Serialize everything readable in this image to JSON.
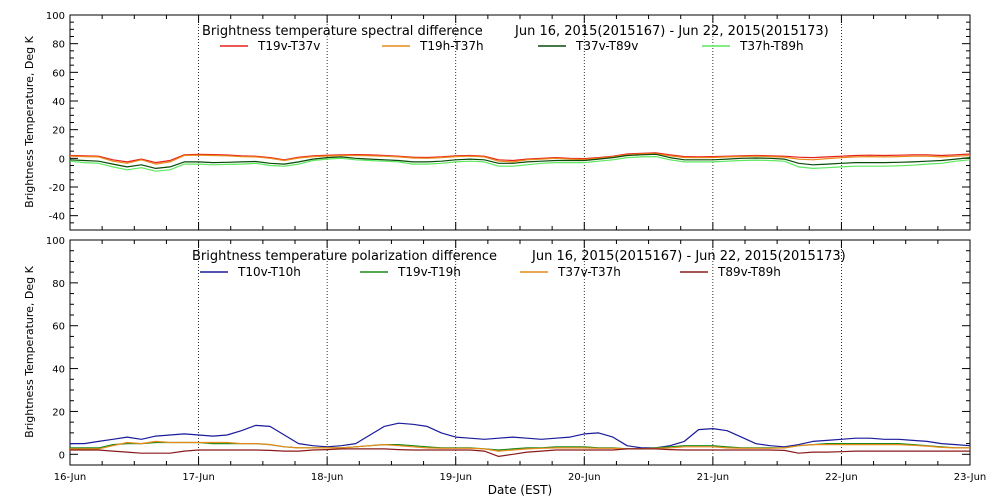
{
  "chart_data": [
    {
      "type": "line",
      "title": "Brightness temperature spectral difference",
      "date_range": "Jun 16, 2015(2015167) - Jun 22, 2015(2015173)",
      "ylabel": "Brightness Temperature, Deg K",
      "xlabel": "",
      "x_ticks": [],
      "y_ticks": [
        -40,
        -20,
        0,
        20,
        40,
        60,
        80,
        100
      ],
      "xlim": [
        0,
        7
      ],
      "ylim": [
        -50,
        100
      ],
      "grid": "vertical dotted lines at each day",
      "legend": "top, one row",
      "series": [
        {
          "name": "T19v-T37v",
          "color": "#e8201a",
          "values": [
            2.0,
            1.8,
            1.5,
            -1.0,
            -2.5,
            -0.5,
            -3.0,
            -1.5,
            2.5,
            2.8,
            2.6,
            2.3,
            1.8,
            1.5,
            0.5,
            -1.0,
            0.8,
            1.8,
            2.2,
            2.5,
            2.6,
            2.4,
            2.0,
            1.5,
            0.8,
            0.6,
            1.0,
            1.8,
            2.0,
            1.5,
            -1.0,
            -1.5,
            -0.5,
            0.0,
            0.5,
            0.0,
            -0.2,
            0.5,
            1.5,
            3.0,
            3.5,
            3.8,
            2.5,
            1.2,
            1.0,
            1.2,
            1.5,
            1.8,
            2.0,
            1.8,
            1.5,
            0.8,
            0.5,
            1.0,
            1.5,
            2.0,
            2.2,
            2.0,
            2.2,
            2.5,
            2.5,
            2.0,
            2.5,
            3.0
          ]
        },
        {
          "name": "T19h-T37h",
          "color": "#e88a1a",
          "values": [
            1.5,
            1.2,
            1.0,
            -2.0,
            -3.5,
            -1.0,
            -4.0,
            -2.5,
            2.0,
            2.2,
            2.0,
            1.8,
            1.2,
            1.0,
            0.0,
            -1.5,
            0.2,
            1.2,
            1.6,
            2.0,
            2.0,
            1.8,
            1.5,
            1.0,
            0.2,
            0.0,
            0.5,
            1.2,
            1.5,
            1.0,
            -2.0,
            -2.5,
            -1.0,
            -0.5,
            0.0,
            -0.5,
            -0.8,
            0.0,
            1.0,
            2.5,
            3.0,
            3.2,
            1.8,
            0.6,
            0.5,
            0.6,
            1.0,
            1.2,
            1.5,
            1.2,
            0.8,
            -0.5,
            -1.0,
            -0.2,
            0.5,
            1.0,
            1.2,
            1.0,
            1.2,
            1.5,
            1.5,
            1.0,
            1.5,
            2.0
          ]
        },
        {
          "name": "T37v-T89v",
          "color": "#0a4a0a",
          "values": [
            -1.0,
            -1.5,
            -2.0,
            -4.0,
            -6.0,
            -4.5,
            -7.0,
            -6.0,
            -2.5,
            -2.5,
            -3.0,
            -2.8,
            -2.5,
            -2.2,
            -3.5,
            -4.0,
            -2.5,
            -0.5,
            0.5,
            1.0,
            0.0,
            -0.5,
            -1.0,
            -1.5,
            -2.5,
            -2.5,
            -2.0,
            -1.0,
            -0.5,
            -1.0,
            -3.5,
            -3.5,
            -2.5,
            -2.0,
            -1.5,
            -1.5,
            -1.5,
            -0.5,
            0.5,
            2.0,
            2.5,
            2.8,
            0.5,
            -1.0,
            -1.0,
            -1.0,
            -0.5,
            0.0,
            0.2,
            0.0,
            -0.5,
            -3.5,
            -4.5,
            -4.0,
            -3.5,
            -3.0,
            -3.0,
            -3.0,
            -2.8,
            -2.5,
            -2.0,
            -1.5,
            -0.5,
            0.5
          ]
        },
        {
          "name": "T37h-T89h",
          "color": "#5ee85e",
          "values": [
            -2.0,
            -3.0,
            -3.5,
            -6.0,
            -8.0,
            -6.5,
            -9.0,
            -8.0,
            -4.0,
            -4.0,
            -4.5,
            -4.2,
            -4.0,
            -3.5,
            -5.0,
            -5.5,
            -4.0,
            -1.5,
            -0.5,
            0.0,
            -1.0,
            -1.5,
            -2.0,
            -2.5,
            -4.0,
            -4.0,
            -3.5,
            -2.5,
            -2.0,
            -2.5,
            -5.5,
            -5.5,
            -4.5,
            -3.5,
            -3.0,
            -3.0,
            -3.0,
            -2.0,
            -1.0,
            0.5,
            1.0,
            1.2,
            -1.0,
            -2.5,
            -2.5,
            -2.5,
            -2.0,
            -1.5,
            -1.2,
            -1.5,
            -2.0,
            -6.0,
            -7.0,
            -6.5,
            -6.0,
            -5.5,
            -5.5,
            -5.5,
            -5.2,
            -4.8,
            -4.0,
            -3.5,
            -2.0,
            -1.0
          ]
        }
      ]
    },
    {
      "type": "line",
      "title": "Brightness temperature polarization difference",
      "date_range": "Jun 16, 2015(2015167) - Jun 22, 2015(2015173)",
      "ylabel": "Brightness Temperature, Deg K",
      "xlabel": "Date (EST)",
      "x_ticks": [
        "16-Jun",
        "17-Jun",
        "18-Jun",
        "19-Jun",
        "20-Jun",
        "21-Jun",
        "22-Jun",
        "23-Jun"
      ],
      "y_ticks": [
        0,
        20,
        40,
        60,
        80,
        100
      ],
      "xlim": [
        0,
        7
      ],
      "ylim": [
        -5,
        100
      ],
      "grid": "vertical dotted lines at each day",
      "legend": "top, one row",
      "series": [
        {
          "name": "T10v-T10h",
          "color": "#1a1a9a",
          "values": [
            5.0,
            5.0,
            6.0,
            7.0,
            8.0,
            7.0,
            8.5,
            9.0,
            9.5,
            9.0,
            8.5,
            9.0,
            11.0,
            13.5,
            13.0,
            9.0,
            5.0,
            4.0,
            3.5,
            4.0,
            5.0,
            9.0,
            13.0,
            14.5,
            14.0,
            13.0,
            10.0,
            8.0,
            7.5,
            7.0,
            7.5,
            8.0,
            7.5,
            7.0,
            7.5,
            8.0,
            9.5,
            10.0,
            8.0,
            4.0,
            3.0,
            3.0,
            4.0,
            6.0,
            11.5,
            12.0,
            11.0,
            8.0,
            5.0,
            4.0,
            3.5,
            4.5,
            6.0,
            6.5,
            7.0,
            7.5,
            7.5,
            7.0,
            7.0,
            6.5,
            6.0,
            5.0,
            4.5,
            4.0
          ]
        },
        {
          "name": "T19v-T19h",
          "color": "#1a8a1a",
          "values": [
            3.0,
            3.0,
            3.0,
            4.5,
            5.0,
            5.0,
            5.5,
            5.5,
            5.5,
            5.5,
            5.0,
            5.0,
            5.0,
            5.0,
            4.5,
            3.5,
            3.0,
            3.0,
            3.0,
            3.0,
            3.5,
            4.0,
            4.5,
            4.5,
            4.0,
            3.5,
            3.0,
            3.0,
            3.0,
            2.5,
            2.0,
            2.5,
            3.0,
            3.0,
            3.5,
            3.5,
            3.5,
            3.0,
            3.0,
            2.5,
            2.5,
            3.0,
            3.5,
            4.0,
            4.0,
            4.0,
            3.5,
            3.0,
            3.0,
            3.0,
            3.0,
            4.0,
            4.5,
            5.0,
            5.0,
            5.0,
            5.0,
            5.0,
            5.0,
            4.5,
            4.0,
            3.5,
            3.0,
            3.0
          ]
        },
        {
          "name": "T37v-T37h",
          "color": "#e88a1a",
          "values": [
            2.5,
            2.5,
            2.5,
            4.0,
            5.5,
            5.0,
            6.0,
            5.5,
            5.5,
            5.5,
            5.5,
            5.5,
            5.0,
            5.0,
            4.5,
            3.5,
            3.0,
            3.0,
            3.0,
            3.0,
            3.5,
            4.0,
            4.5,
            4.0,
            3.5,
            3.0,
            2.8,
            2.8,
            2.8,
            2.5,
            1.5,
            2.0,
            2.5,
            2.8,
            3.0,
            3.0,
            3.0,
            2.8,
            2.8,
            2.5,
            2.5,
            2.8,
            3.0,
            3.5,
            3.5,
            3.5,
            3.0,
            2.8,
            2.8,
            2.8,
            3.0,
            4.0,
            4.5,
            4.5,
            4.5,
            4.5,
            4.5,
            4.5,
            4.5,
            4.2,
            3.8,
            3.2,
            3.0,
            3.0
          ]
        },
        {
          "name": "T89v-T89h",
          "color": "#8a1a1a",
          "values": [
            2.0,
            2.0,
            2.0,
            1.5,
            1.0,
            0.5,
            0.5,
            0.5,
            1.5,
            2.0,
            2.0,
            2.0,
            2.0,
            2.0,
            1.8,
            1.5,
            1.5,
            2.0,
            2.2,
            2.5,
            2.5,
            2.5,
            2.5,
            2.2,
            2.0,
            2.0,
            2.0,
            2.0,
            2.0,
            1.5,
            -1.0,
            0.0,
            1.0,
            1.5,
            2.0,
            2.0,
            2.0,
            2.0,
            2.0,
            2.5,
            2.5,
            2.5,
            2.2,
            2.0,
            2.0,
            2.0,
            2.0,
            2.0,
            2.0,
            2.0,
            1.8,
            0.5,
            1.0,
            1.0,
            1.2,
            1.5,
            1.5,
            1.5,
            1.5,
            1.5,
            1.5,
            1.5,
            1.5,
            1.5
          ]
        }
      ]
    }
  ]
}
